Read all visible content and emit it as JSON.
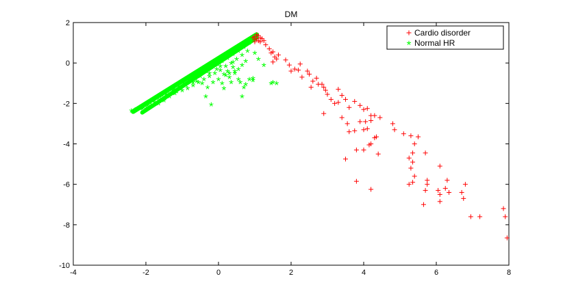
{
  "chart_data": {
    "type": "scatter",
    "title": "DM",
    "xlabel": "",
    "ylabel": "",
    "xlim": [
      -4,
      8
    ],
    "ylim": [
      -10,
      2
    ],
    "xticks": [
      -4,
      -2,
      0,
      2,
      4,
      6,
      8
    ],
    "yticks": [
      -10,
      -8,
      -6,
      -4,
      -2,
      0,
      2
    ],
    "grid": false,
    "legend_position": "top-right",
    "series": [
      {
        "name": "Cardio disorder",
        "marker": "plus",
        "color": "#ff0000",
        "points": [
          [
            1.0,
            1.3
          ],
          [
            1.05,
            1.2
          ],
          [
            1.1,
            1.35
          ],
          [
            1.0,
            1.15
          ],
          [
            1.15,
            1.25
          ],
          [
            1.05,
            1.4
          ],
          [
            0.95,
            1.25
          ],
          [
            1.1,
            1.1
          ],
          [
            1.2,
            1.2
          ],
          [
            1.15,
            1.05
          ],
          [
            1.0,
            1.05
          ],
          [
            1.25,
            1.1
          ],
          [
            1.3,
            0.9
          ],
          [
            1.4,
            0.7
          ],
          [
            1.45,
            0.5
          ],
          [
            1.5,
            0.55
          ],
          [
            1.55,
            0.3
          ],
          [
            1.6,
            0.2
          ],
          [
            1.5,
            0.05
          ],
          [
            1.65,
            0.4
          ],
          [
            1.85,
            0.15
          ],
          [
            1.95,
            -0.1
          ],
          [
            2.0,
            -0.4
          ],
          [
            2.1,
            -0.3
          ],
          [
            2.2,
            -0.35
          ],
          [
            2.3,
            -0.7
          ],
          [
            2.25,
            -0.05
          ],
          [
            2.45,
            -0.4
          ],
          [
            2.5,
            -0.55
          ],
          [
            2.6,
            -0.9
          ],
          [
            2.55,
            -1.2
          ],
          [
            2.7,
            -0.75
          ],
          [
            2.75,
            -1.05
          ],
          [
            2.9,
            -1.2
          ],
          [
            2.95,
            -1.35
          ],
          [
            3.0,
            -1.55
          ],
          [
            3.1,
            -1.8
          ],
          [
            2.85,
            -1.05
          ],
          [
            3.3,
            -1.3
          ],
          [
            3.4,
            -1.6
          ],
          [
            3.3,
            -1.95
          ],
          [
            3.5,
            -1.8
          ],
          [
            3.6,
            -2.2
          ],
          [
            3.75,
            -1.9
          ],
          [
            3.9,
            -2.1
          ],
          [
            4.0,
            -2.3
          ],
          [
            4.1,
            -2.25
          ],
          [
            4.2,
            -2.6
          ],
          [
            3.2,
            -2.0
          ],
          [
            2.9,
            -2.5
          ],
          [
            3.4,
            -2.7
          ],
          [
            3.55,
            -3.0
          ],
          [
            3.9,
            -2.9
          ],
          [
            4.05,
            -2.9
          ],
          [
            4.2,
            -2.85
          ],
          [
            4.3,
            -2.6
          ],
          [
            4.45,
            -2.7
          ],
          [
            4.0,
            -3.3
          ],
          [
            4.1,
            -3.25
          ],
          [
            3.75,
            -3.35
          ],
          [
            3.6,
            -3.4
          ],
          [
            4.3,
            -3.7
          ],
          [
            4.35,
            -3.65
          ],
          [
            4.2,
            -4.0
          ],
          [
            4.15,
            -4.05
          ],
          [
            4.0,
            -4.3
          ],
          [
            3.8,
            -4.3
          ],
          [
            4.4,
            -4.5
          ],
          [
            3.5,
            -4.75
          ],
          [
            4.8,
            -3.0
          ],
          [
            4.85,
            -3.3
          ],
          [
            5.1,
            -3.5
          ],
          [
            5.3,
            -3.6
          ],
          [
            5.5,
            -3.65
          ],
          [
            5.4,
            -4.0
          ],
          [
            5.35,
            -4.45
          ],
          [
            5.7,
            -4.45
          ],
          [
            5.25,
            -4.7
          ],
          [
            5.35,
            -4.9
          ],
          [
            5.3,
            -5.2
          ],
          [
            5.4,
            -5.6
          ],
          [
            5.75,
            -5.8
          ],
          [
            5.75,
            -6.0
          ],
          [
            5.35,
            -5.9
          ],
          [
            5.25,
            -6.0
          ],
          [
            5.7,
            -6.3
          ],
          [
            5.65,
            -7.0
          ],
          [
            6.1,
            -5.1
          ],
          [
            6.3,
            -5.8
          ],
          [
            6.05,
            -6.3
          ],
          [
            6.25,
            -6.2
          ],
          [
            6.35,
            -6.4
          ],
          [
            6.1,
            -6.5
          ],
          [
            6.7,
            -6.4
          ],
          [
            6.8,
            -6.0
          ],
          [
            6.75,
            -6.7
          ],
          [
            6.1,
            -6.85
          ],
          [
            3.8,
            -5.85
          ],
          [
            4.2,
            -6.25
          ],
          [
            6.95,
            -7.6
          ],
          [
            7.2,
            -7.6
          ],
          [
            7.85,
            -7.2
          ],
          [
            7.9,
            -7.6
          ],
          [
            7.95,
            -8.65
          ]
        ]
      },
      {
        "name": "Normal HR",
        "marker": "star",
        "color": "#00ff00",
        "line_segment": [
          [
            -2.35,
            -2.4
          ],
          [
            1.05,
            1.4
          ]
        ],
        "points": [
          [
            -2.4,
            -2.35
          ],
          [
            -2.3,
            -2.3
          ],
          [
            -2.15,
            -2.2
          ],
          [
            -2.05,
            -2.05
          ],
          [
            -1.9,
            -1.95
          ],
          [
            -1.8,
            -1.85
          ],
          [
            -1.7,
            -1.75
          ],
          [
            -1.55,
            -1.6
          ],
          [
            -1.4,
            -1.4
          ],
          [
            -1.25,
            -1.3
          ],
          [
            -1.1,
            -1.15
          ],
          [
            -0.95,
            -1.0
          ],
          [
            -0.8,
            -0.85
          ],
          [
            -0.65,
            -0.7
          ],
          [
            -0.5,
            -0.55
          ],
          [
            -0.35,
            -0.4
          ],
          [
            -0.2,
            -0.2
          ],
          [
            -0.05,
            -0.05
          ],
          [
            0.1,
            0.1
          ],
          [
            0.25,
            0.25
          ],
          [
            0.4,
            0.45
          ],
          [
            0.55,
            0.6
          ],
          [
            0.7,
            0.8
          ],
          [
            0.85,
            1.0
          ],
          [
            0.95,
            1.2
          ],
          [
            -2.1,
            -2.25
          ],
          [
            -1.95,
            -2.1
          ],
          [
            -1.75,
            -1.95
          ],
          [
            -1.6,
            -1.8
          ],
          [
            -1.5,
            -1.85
          ],
          [
            -1.35,
            -1.65
          ],
          [
            -1.2,
            -1.5
          ],
          [
            -1.0,
            -1.35
          ],
          [
            -0.85,
            -1.25
          ],
          [
            -0.7,
            -1.1
          ],
          [
            -0.55,
            -0.95
          ],
          [
            -0.4,
            -0.8
          ],
          [
            -0.25,
            -0.65
          ],
          [
            -0.1,
            -0.5
          ],
          [
            0.05,
            -0.35
          ],
          [
            0.2,
            -0.15
          ],
          [
            0.35,
            0.0
          ],
          [
            0.5,
            0.2
          ],
          [
            0.65,
            0.4
          ],
          [
            0.8,
            0.6
          ],
          [
            -0.6,
            -0.9
          ],
          [
            -0.45,
            -1.0
          ],
          [
            -0.3,
            -1.2
          ],
          [
            -0.15,
            -0.95
          ],
          [
            0.0,
            -0.8
          ],
          [
            0.1,
            -1.0
          ],
          [
            0.15,
            -1.25
          ],
          [
            0.3,
            -0.7
          ],
          [
            0.35,
            -0.95
          ],
          [
            0.2,
            -0.6
          ],
          [
            0.45,
            -0.5
          ],
          [
            0.55,
            -0.3
          ],
          [
            0.4,
            -0.2
          ],
          [
            0.65,
            -0.1
          ],
          [
            0.75,
            0.1
          ],
          [
            0.85,
            -0.8
          ],
          [
            0.95,
            -0.85
          ],
          [
            0.6,
            -0.95
          ],
          [
            0.7,
            -1.2
          ],
          [
            0.55,
            -0.8
          ],
          [
            0.45,
            -0.4
          ],
          [
            0.3,
            -0.5
          ],
          [
            -0.35,
            -1.65
          ],
          [
            -0.2,
            -2.05
          ],
          [
            0.65,
            -1.65
          ],
          [
            0.75,
            -1.05
          ],
          [
            0.95,
            -0.75
          ],
          [
            1.1,
            0.2
          ],
          [
            1.25,
            -0.1
          ],
          [
            1.45,
            -1.0
          ],
          [
            1.6,
            -1.0
          ],
          [
            1.5,
            -0.95
          ],
          [
            1.0,
            0.5
          ],
          [
            -0.05,
            -0.3
          ],
          [
            0.25,
            -0.4
          ],
          [
            -0.5,
            -0.65
          ],
          [
            -0.7,
            -0.95
          ],
          [
            -0.9,
            -1.1
          ],
          [
            -1.15,
            -1.4
          ],
          [
            -1.45,
            -1.55
          ],
          [
            -1.65,
            -2.0
          ],
          [
            -1.85,
            -2.1
          ],
          [
            -2.0,
            -2.25
          ],
          [
            -0.25,
            -0.5
          ],
          [
            0.05,
            -0.15
          ],
          [
            0.15,
            -0.55
          ],
          [
            0.4,
            0.05
          ]
        ]
      }
    ]
  }
}
